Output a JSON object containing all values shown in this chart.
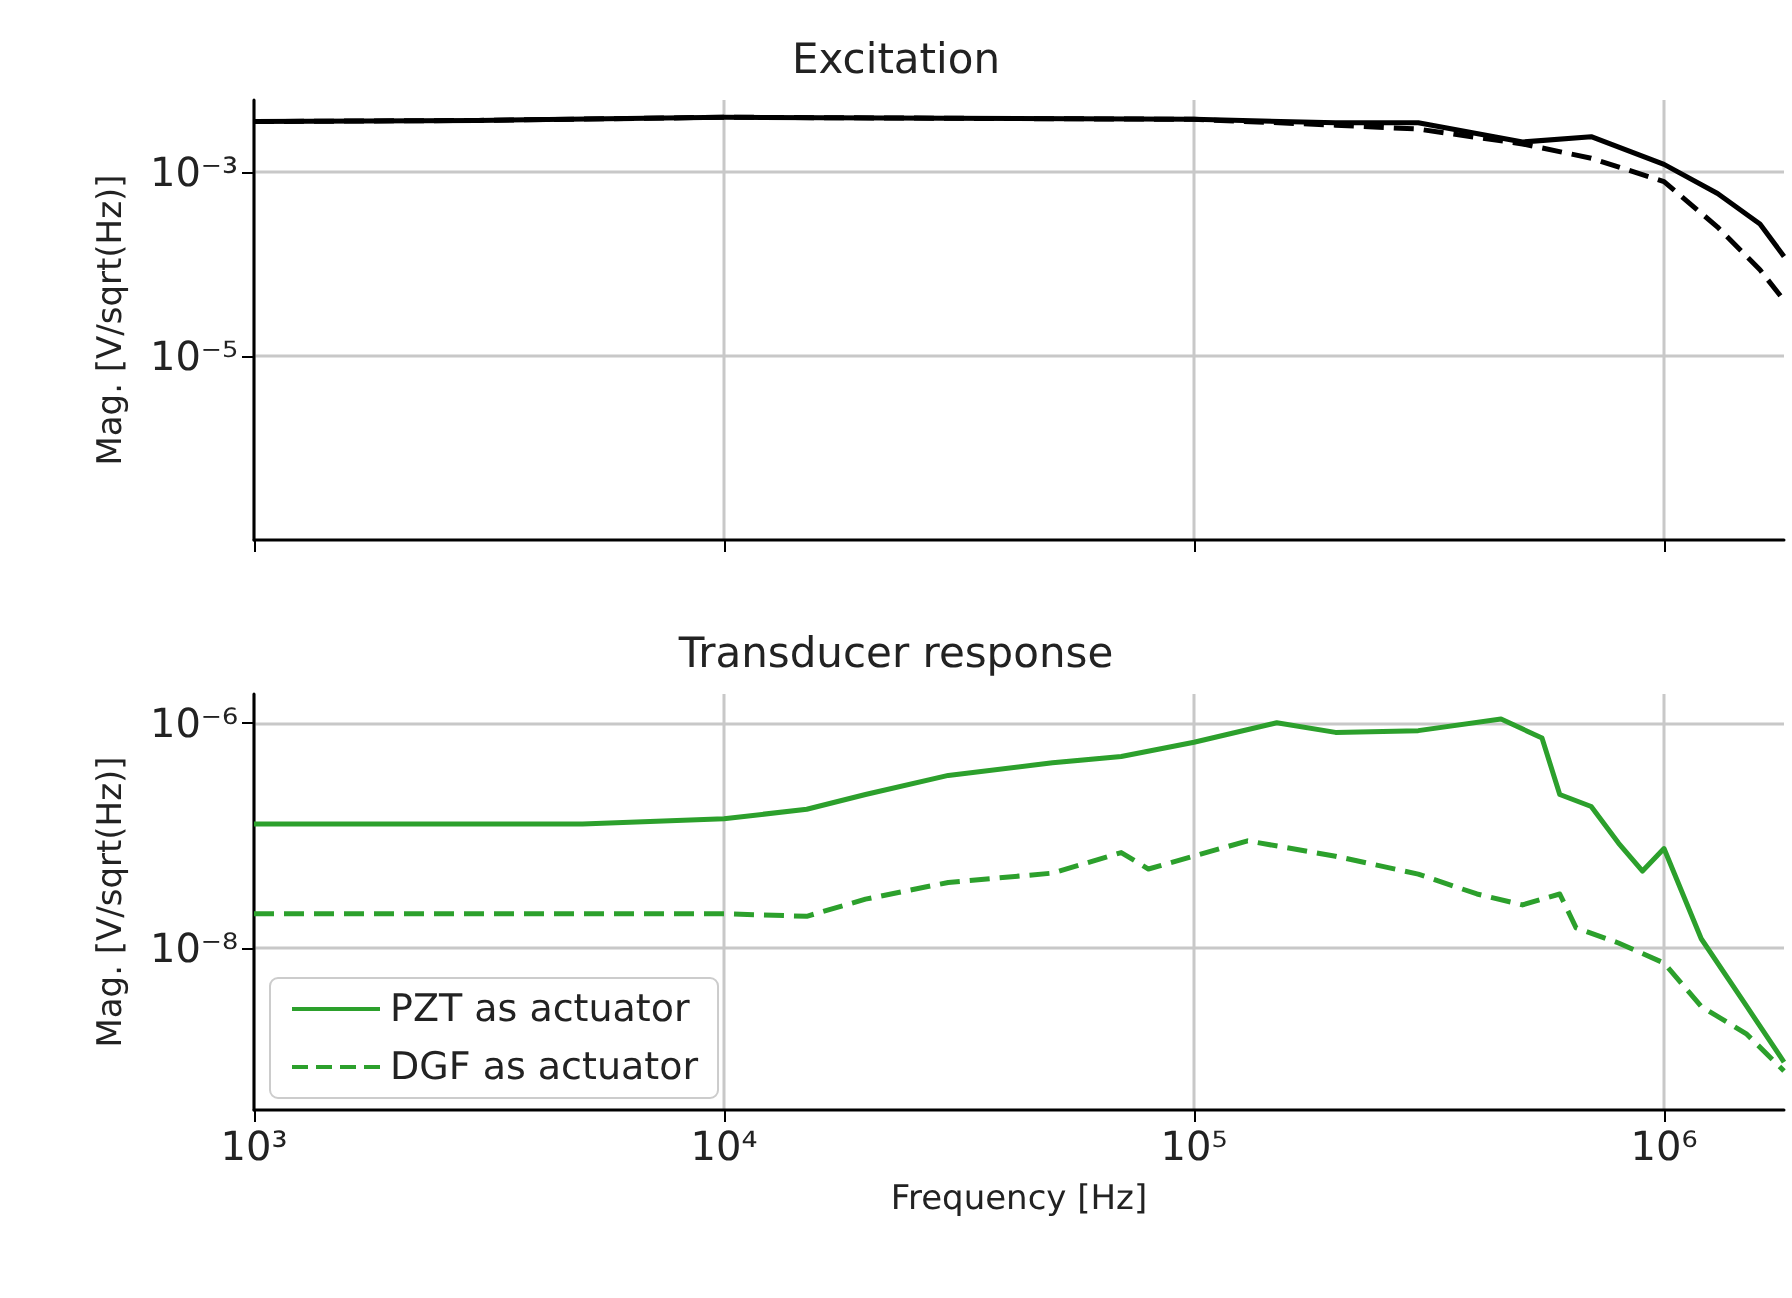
{
  "chart_data": [
    {
      "type": "line",
      "title": "Excitation",
      "ylabel": "Mag. [V/sqrt(Hz)]",
      "log": "xy",
      "grid": true,
      "tick_labels": "y",
      "xlim": [
        1000,
        1800000
      ],
      "ylim": [
        1e-07,
        0.006
      ],
      "xticks": [
        {
          "value": 1000,
          "label": null
        },
        {
          "value": 10000,
          "label": null
        },
        {
          "value": 100000,
          "label": null
        },
        {
          "value": 1000000,
          "label": null
        }
      ],
      "yticks": [
        {
          "value": 0.001,
          "label": "10⁻³"
        },
        {
          "value": 1e-05,
          "label": "10⁻⁵"
        }
      ],
      "series": [
        {
          "color": "#000000",
          "line_style": "solid",
          "x": [
            1000,
            3000,
            10000,
            30000,
            100000,
            200000,
            300000,
            500000,
            700000,
            1000000,
            1300000,
            1600000,
            1800000
          ],
          "values": [
            0.0035,
            0.0036,
            0.0039,
            0.0038,
            0.0037,
            0.0034,
            0.0034,
            0.0021,
            0.0024,
            0.0012,
            0.00058,
            0.00027,
            0.00012
          ]
        },
        {
          "color": "#000000",
          "line_style": "dashed",
          "x": [
            1000,
            3000,
            10000,
            30000,
            100000,
            200000,
            300000,
            500000,
            700000,
            1000000,
            1300000,
            1600000,
            1800000
          ],
          "values": [
            0.0035,
            0.0036,
            0.0039,
            0.0038,
            0.0037,
            0.0032,
            0.0029,
            0.002,
            0.0014,
            0.00078,
            0.00025,
            8.6e-05,
            4e-05
          ]
        }
      ]
    },
    {
      "type": "line",
      "title": "Transducer response",
      "xlabel": "Frequency [Hz]",
      "ylabel": "Mag. [V/sqrt(Hz)]",
      "log": "xy",
      "grid": true,
      "legend": "bottom left",
      "xlim": [
        1000,
        1800000
      ],
      "ylim": [
        3.6e-10,
        1.8e-06
      ],
      "xticks": [
        {
          "value": 1000,
          "label": "10³"
        },
        {
          "value": 10000,
          "label": "10⁴"
        },
        {
          "value": 100000,
          "label": "10⁵"
        },
        {
          "value": 1000000,
          "label": "10⁶"
        }
      ],
      "yticks": [
        {
          "value": 1e-06,
          "label": "10⁻⁶"
        },
        {
          "value": 1e-08,
          "label": "10⁻⁸"
        }
      ],
      "series": [
        {
          "name": "PZT as actuator",
          "color": "#2ca02c",
          "line_style": "solid",
          "x": [
            1000,
            5000,
            10000,
            15000,
            20000,
            30000,
            50000,
            70000,
            100000,
            150000,
            200000,
            300000,
            450000,
            550000,
            600000,
            700000,
            800000,
            900000,
            1000000,
            1200000,
            1500000,
            1800000
          ],
          "values": [
            1.26e-07,
            1.26e-07,
            1.4e-07,
            1.7e-07,
            2.3e-07,
            3.4e-07,
            4.4e-07,
            5e-07,
            6.7e-07,
            1e-06,
            8.2e-07,
            8.5e-07,
            1.08e-06,
            7.3e-07,
            2.3e-07,
            1.8e-07,
            8.5e-08,
            4.8e-08,
            7.6e-08,
            1.2e-08,
            3e-09,
            9.6e-10
          ]
        },
        {
          "name": "DGF as actuator",
          "color": "#2ca02c",
          "line_style": "dashed",
          "x": [
            1000,
            10000,
            15000,
            20000,
            30000,
            50000,
            70000,
            80000,
            130000,
            200000,
            300000,
            400000,
            500000,
            600000,
            650000,
            800000,
            1000000,
            1200000,
            1500000,
            1800000
          ],
          "values": [
            2e-08,
            2e-08,
            1.9e-08,
            2.7e-08,
            3.8e-08,
            4.6e-08,
            7e-08,
            5e-08,
            8.9e-08,
            6.5e-08,
            4.5e-08,
            3e-08,
            2.4e-08,
            3e-08,
            1.5e-08,
            1.1e-08,
            7.3e-09,
            3e-09,
            1.7e-09,
            8e-10
          ]
        }
      ]
    }
  ]
}
